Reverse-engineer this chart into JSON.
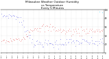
{
  "title": "Milwaukee Weather Outdoor Humidity\nvs Temperature\nEvery 5 Minutes",
  "title_fontsize": 3.0,
  "blue_color": "#0000dd",
  "red_color": "#dd0000",
  "cyan_color": "#00ccff",
  "background_color": "#ffffff",
  "grid_color": "#bbbbbb",
  "ylim": [
    0,
    100
  ],
  "marker_size": 0.5,
  "n_points": 110
}
